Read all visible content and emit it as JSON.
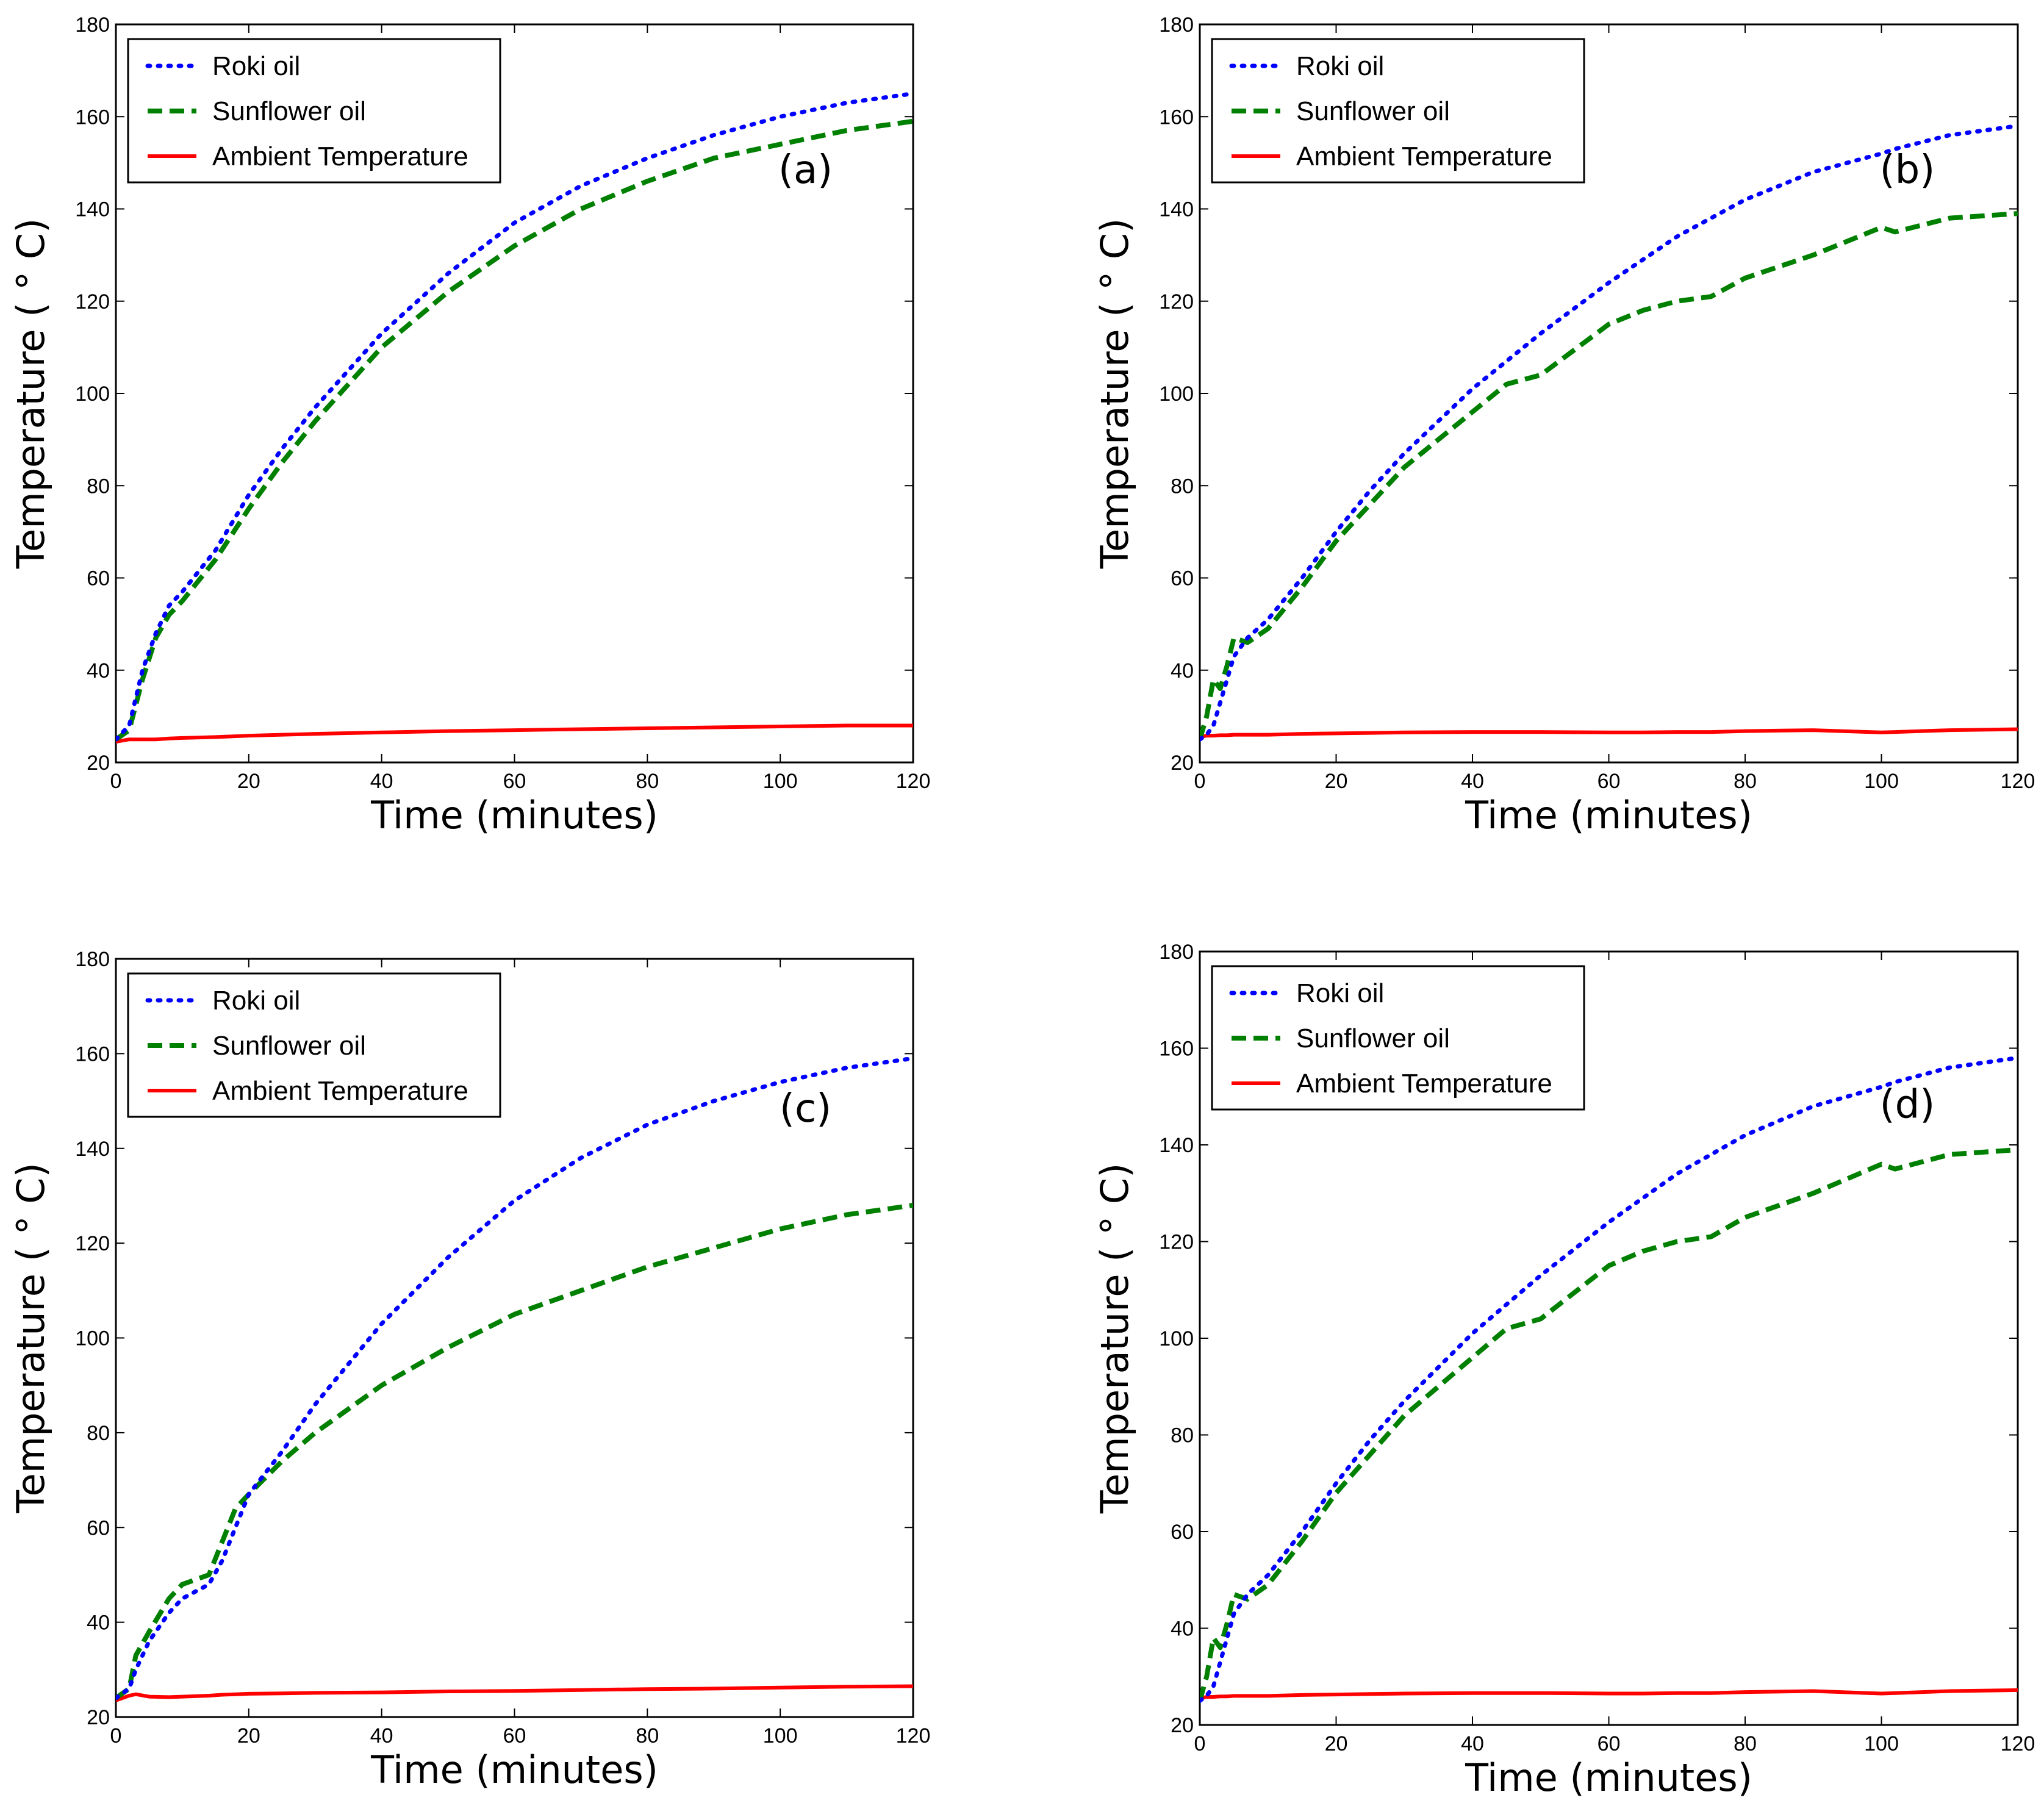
{
  "chart_data": [
    {
      "type": "line",
      "panel_label": "(a)",
      "xlabel": "Time (minutes)",
      "ylabel": "Temperature ( ° C)",
      "xlim": [
        0,
        120
      ],
      "ylim": [
        20,
        180
      ],
      "xticks": [
        0,
        20,
        40,
        60,
        80,
        100,
        120
      ],
      "yticks": [
        20,
        40,
        60,
        80,
        100,
        120,
        140,
        160,
        180
      ],
      "legend_position": "top-left",
      "x": [
        0,
        2,
        4,
        6,
        8,
        10,
        15,
        20,
        25,
        30,
        40,
        50,
        60,
        70,
        80,
        90,
        100,
        110,
        120
      ],
      "series": [
        {
          "name": "Roki oil",
          "color": "#0000ff",
          "style": "dotted",
          "values": [
            25,
            28,
            40,
            48,
            54,
            57,
            66,
            78,
            88,
            97,
            113,
            126,
            137,
            145,
            151,
            156,
            160,
            163,
            165
          ]
        },
        {
          "name": "Sunflower oil",
          "color": "#008000",
          "style": "dashed",
          "values": [
            25,
            27,
            38,
            47,
            52,
            55,
            64,
            75,
            85,
            94,
            110,
            122,
            132,
            140,
            146,
            151,
            154,
            157,
            159
          ]
        },
        {
          "name": "Ambient Temperature",
          "color": "#ff0000",
          "style": "solid",
          "values": [
            24.5,
            25,
            25,
            25,
            25.2,
            25.3,
            25.5,
            25.8,
            26,
            26.2,
            26.5,
            26.8,
            27,
            27.2,
            27.4,
            27.6,
            27.8,
            28,
            28
          ]
        }
      ]
    },
    {
      "type": "line",
      "panel_label": "(b)",
      "xlabel": "Time (minutes)",
      "ylabel": "Temperature ( ° C)",
      "xlim": [
        0,
        120
      ],
      "ylim": [
        20,
        180
      ],
      "xticks": [
        0,
        20,
        40,
        60,
        80,
        100,
        120
      ],
      "yticks": [
        20,
        40,
        60,
        80,
        100,
        120,
        140,
        160,
        180
      ],
      "legend_position": "top-left",
      "x": [
        0,
        1,
        2,
        3,
        4,
        5,
        7,
        10,
        15,
        20,
        25,
        30,
        40,
        45,
        50,
        60,
        65,
        70,
        75,
        80,
        90,
        100,
        102,
        110,
        120
      ],
      "series": [
        {
          "name": "Roki oil",
          "color": "#0000ff",
          "style": "dotted",
          "values": [
            25,
            26,
            28,
            33,
            38,
            43,
            47,
            51,
            60,
            70,
            79,
            87,
            101,
            107,
            113,
            124,
            129,
            134,
            138,
            142,
            148,
            152,
            153,
            156,
            158
          ]
        },
        {
          "name": "Sunflower oil",
          "color": "#008000",
          "style": "dashed",
          "values": [
            25,
            30,
            38,
            36,
            41,
            47,
            46,
            49,
            58,
            68,
            76,
            84,
            96,
            102,
            104,
            115,
            118,
            120,
            121,
            125,
            130,
            136,
            135,
            138,
            139
          ]
        },
        {
          "name": "Ambient Temperature",
          "color": "#ff0000",
          "style": "solid",
          "values": [
            25.5,
            25.8,
            25.8,
            25.9,
            25.9,
            26,
            26,
            26,
            26.2,
            26.3,
            26.4,
            26.5,
            26.6,
            26.6,
            26.6,
            26.5,
            26.5,
            26.6,
            26.6,
            26.8,
            27,
            26.5,
            26.6,
            27,
            27.2
          ]
        }
      ]
    },
    {
      "type": "line",
      "panel_label": "(c)",
      "xlabel": "Time (minutes)",
      "ylabel": "Temperature ( ° C)",
      "xlim": [
        0,
        120
      ],
      "ylim": [
        20,
        180
      ],
      "xticks": [
        0,
        20,
        40,
        60,
        80,
        100,
        120
      ],
      "yticks": [
        20,
        40,
        60,
        80,
        100,
        120,
        140,
        160,
        180
      ],
      "legend_position": "top-left",
      "x": [
        0,
        2,
        3,
        5,
        8,
        10,
        14,
        16,
        18,
        20,
        25,
        30,
        40,
        50,
        60,
        70,
        80,
        90,
        100,
        110,
        120
      ],
      "series": [
        {
          "name": "Roki oil",
          "color": "#0000ff",
          "style": "dotted",
          "values": [
            24,
            26,
            30,
            36,
            42,
            45,
            48,
            53,
            60,
            67,
            76,
            86,
            103,
            117,
            129,
            138,
            145,
            150,
            154,
            157,
            159
          ]
        },
        {
          "name": "Sunflower oil",
          "color": "#008000",
          "style": "dashed",
          "values": [
            24,
            26,
            33,
            38,
            45,
            48,
            50,
            57,
            64,
            67,
            74,
            80,
            90,
            98,
            105,
            110,
            115,
            119,
            123,
            126,
            128
          ]
        },
        {
          "name": "Ambient Temperature",
          "color": "#ff0000",
          "style": "solid",
          "values": [
            23.5,
            24.5,
            24.8,
            24.3,
            24.2,
            24.3,
            24.5,
            24.7,
            24.8,
            24.9,
            25,
            25.1,
            25.2,
            25.4,
            25.5,
            25.7,
            25.9,
            26,
            26.2,
            26.4,
            26.5
          ]
        }
      ]
    },
    {
      "type": "line",
      "panel_label": "(d)",
      "xlabel": "Time (minutes)",
      "ylabel": "Temperature ( ° C)",
      "xlim": [
        0,
        120
      ],
      "ylim": [
        20,
        180
      ],
      "xticks": [
        0,
        20,
        40,
        60,
        80,
        100,
        120
      ],
      "yticks": [
        20,
        40,
        60,
        80,
        100,
        120,
        140,
        160,
        180
      ],
      "legend_position": "top-left",
      "x": [
        0,
        1,
        2,
        3,
        4,
        5,
        7,
        10,
        15,
        20,
        25,
        30,
        40,
        45,
        50,
        60,
        65,
        70,
        75,
        80,
        90,
        100,
        102,
        110,
        120
      ],
      "series": [
        {
          "name": "Roki oil",
          "color": "#0000ff",
          "style": "dotted",
          "values": [
            25,
            26,
            28,
            33,
            38,
            43,
            47,
            51,
            60,
            70,
            79,
            87,
            101,
            107,
            113,
            124,
            129,
            134,
            138,
            142,
            148,
            152,
            153,
            156,
            158
          ]
        },
        {
          "name": "Sunflower oil",
          "color": "#008000",
          "style": "dashed",
          "values": [
            25,
            30,
            38,
            36,
            41,
            47,
            46,
            49,
            58,
            68,
            76,
            84,
            96,
            102,
            104,
            115,
            118,
            120,
            121,
            125,
            130,
            136,
            135,
            138,
            139
          ]
        },
        {
          "name": "Ambient Temperature",
          "color": "#ff0000",
          "style": "solid",
          "values": [
            25.5,
            25.8,
            25.8,
            25.9,
            25.9,
            26,
            26,
            26,
            26.2,
            26.3,
            26.4,
            26.5,
            26.6,
            26.6,
            26.6,
            26.5,
            26.5,
            26.6,
            26.6,
            26.8,
            27,
            26.5,
            26.6,
            27,
            27.2
          ]
        }
      ]
    }
  ]
}
